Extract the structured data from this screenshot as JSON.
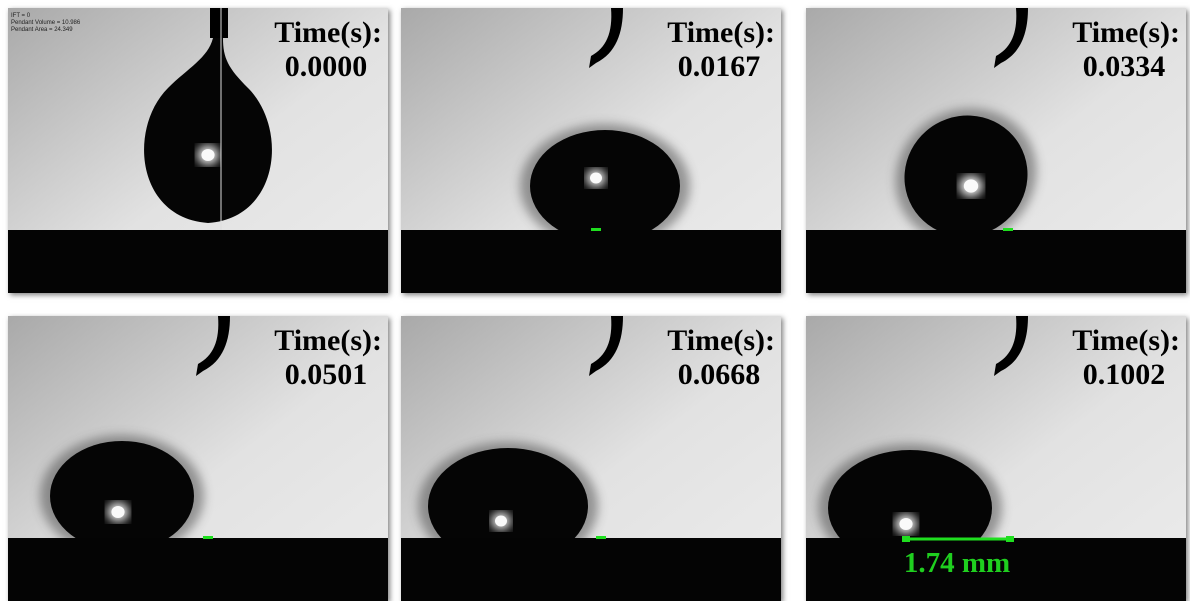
{
  "panels": [
    {
      "time_label": "Time(s):",
      "time": "0.0000",
      "overlay": [
        "IFT = 0",
        "Pendant Volume = 10.986",
        "Pendant Area = 24.349"
      ]
    },
    {
      "time_label": "Time(s):",
      "time": "0.0167"
    },
    {
      "time_label": "Time(s):",
      "time": "0.0334"
    },
    {
      "time_label": "Time(s):",
      "time": "0.0501"
    },
    {
      "time_label": "Time(s):",
      "time": "0.0668"
    },
    {
      "time_label": "Time(s):",
      "time": "0.1002",
      "measurement": "1.74 mm"
    }
  ]
}
